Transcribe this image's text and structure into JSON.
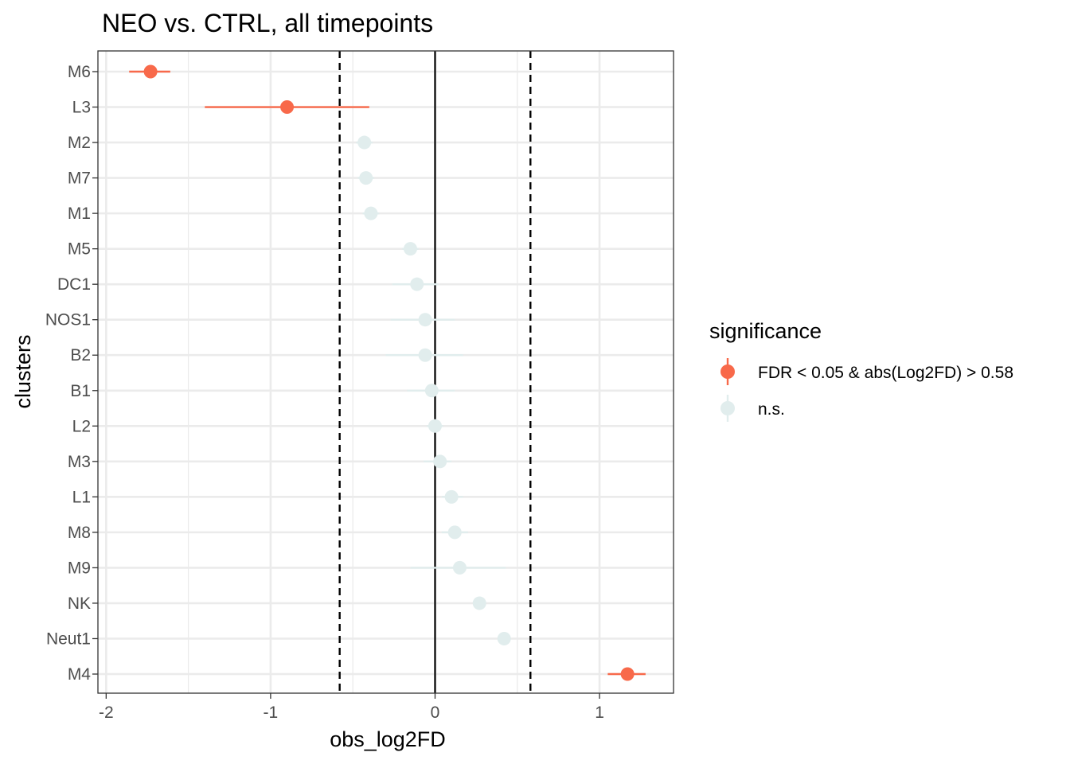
{
  "chart_data": {
    "type": "scatter",
    "title": "NEO vs. CTRL, all timepoints",
    "xlabel": "obs_log2FD",
    "ylabel": "clusters",
    "xlim": [
      -2.05,
      1.45
    ],
    "x_ticks": [
      -2,
      -1,
      0,
      1
    ],
    "x_tick_labels": [
      "-2",
      "-1",
      "0",
      "1"
    ],
    "reference_lines": {
      "solid": [
        0
      ],
      "dashed": [
        -0.58,
        0.58
      ]
    },
    "grid": true,
    "legend": {
      "title": "significance",
      "position": "right",
      "entries": [
        {
          "label": "FDR < 0.05 & abs(Log2FD) > 0.58",
          "color": "#F8694A"
        },
        {
          "label": "n.s.",
          "color": "#E1EDED"
        }
      ]
    },
    "categories": [
      "M6",
      "L3",
      "M2",
      "M7",
      "M1",
      "M5",
      "DC1",
      "NOS1",
      "B2",
      "B1",
      "L2",
      "M3",
      "L1",
      "M8",
      "M9",
      "NK",
      "Neut1",
      "M4"
    ],
    "points": [
      {
        "cluster": "M6",
        "x": -1.73,
        "lo": -1.86,
        "hi": -1.61,
        "significance": "FDR < 0.05 & abs(Log2FD) > 0.58"
      },
      {
        "cluster": "L3",
        "x": -0.9,
        "lo": -1.4,
        "hi": -0.4,
        "significance": "FDR < 0.05 & abs(Log2FD) > 0.58"
      },
      {
        "cluster": "M2",
        "x": -0.43,
        "lo": -0.48,
        "hi": -0.38,
        "significance": "n.s."
      },
      {
        "cluster": "M7",
        "x": -0.42,
        "lo": -0.47,
        "hi": -0.37,
        "significance": "n.s."
      },
      {
        "cluster": "M1",
        "x": -0.39,
        "lo": -0.44,
        "hi": -0.34,
        "significance": "n.s."
      },
      {
        "cluster": "M5",
        "x": -0.15,
        "lo": -0.2,
        "hi": -0.1,
        "significance": "n.s."
      },
      {
        "cluster": "DC1",
        "x": -0.11,
        "lo": -0.26,
        "hi": 0.02,
        "significance": "n.s."
      },
      {
        "cluster": "NOS1",
        "x": -0.06,
        "lo": -0.27,
        "hi": 0.12,
        "significance": "n.s."
      },
      {
        "cluster": "B2",
        "x": -0.06,
        "lo": -0.3,
        "hi": 0.17,
        "significance": "n.s."
      },
      {
        "cluster": "B1",
        "x": -0.02,
        "lo": -0.17,
        "hi": 0.12,
        "significance": "n.s."
      },
      {
        "cluster": "L2",
        "x": 0.0,
        "lo": -0.05,
        "hi": 0.05,
        "significance": "n.s."
      },
      {
        "cluster": "M3",
        "x": 0.03,
        "lo": -0.07,
        "hi": 0.1,
        "significance": "n.s."
      },
      {
        "cluster": "L1",
        "x": 0.1,
        "lo": 0.04,
        "hi": 0.17,
        "significance": "n.s."
      },
      {
        "cluster": "M8",
        "x": 0.12,
        "lo": 0.04,
        "hi": 0.2,
        "significance": "n.s."
      },
      {
        "cluster": "M9",
        "x": 0.15,
        "lo": -0.15,
        "hi": 0.43,
        "significance": "n.s."
      },
      {
        "cluster": "NK",
        "x": 0.27,
        "lo": 0.23,
        "hi": 0.31,
        "significance": "n.s."
      },
      {
        "cluster": "Neut1",
        "x": 0.42,
        "lo": 0.38,
        "hi": 0.46,
        "significance": "n.s."
      },
      {
        "cluster": "M4",
        "x": 1.17,
        "lo": 1.05,
        "hi": 1.28,
        "significance": "FDR < 0.05 & abs(Log2FD) > 0.58"
      }
    ]
  }
}
